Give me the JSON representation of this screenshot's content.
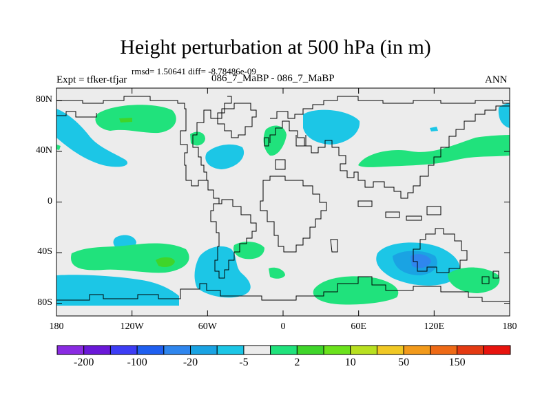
{
  "title": "Height perturbation at 500 hPa (in m)",
  "stats": "rmsd= 1.50641 diff= -8.78486e-09",
  "left_label": "Expt = tfker-tfjar",
  "center_label": "086_7_MaBP - 086_7_MaBP",
  "right_label": "ANN",
  "axes": {
    "y_ticks": [
      {
        "label": "80N",
        "lat": 80
      },
      {
        "label": "40N",
        "lat": 40
      },
      {
        "label": "0",
        "lat": 0
      },
      {
        "label": "40S",
        "lat": -40
      },
      {
        "label": "80S",
        "lat": -80
      }
    ],
    "x_ticks": [
      {
        "label": "180",
        "lon": -180
      },
      {
        "label": "120W",
        "lon": -120
      },
      {
        "label": "60W",
        "lon": -60
      },
      {
        "label": "0",
        "lon": 0
      },
      {
        "label": "60E",
        "lon": 60
      },
      {
        "label": "120E",
        "lon": 120
      },
      {
        "label": "180",
        "lon": 180
      }
    ],
    "lon_range": [
      -180,
      180
    ],
    "lat_range": [
      -90,
      90
    ]
  },
  "colorbar": {
    "colors": [
      "#8a2be2",
      "#6a18d8",
      "#3d3df5",
      "#1f5ff0",
      "#2f86ee",
      "#1aa3e3",
      "#1cc6e6",
      "#ececec",
      "#20e27c",
      "#3fd52a",
      "#6be21c",
      "#b8e020",
      "#f0c824",
      "#f29a1b",
      "#ee6a16",
      "#e43a12",
      "#e8140e"
    ],
    "labels": [
      {
        "text": "-200",
        "edge": 1
      },
      {
        "text": "-100",
        "edge": 3
      },
      {
        "text": "-20",
        "edge": 5
      },
      {
        "text": "-5",
        "edge": 7
      },
      {
        "text": "2",
        "edge": 9
      },
      {
        "text": "10",
        "edge": 11
      },
      {
        "text": "50",
        "edge": 13
      },
      {
        "text": "150",
        "edge": 15
      }
    ]
  },
  "colors": {
    "background": "#ececec",
    "positive": "#20e27c",
    "positive_strong": "#3fd52a",
    "negative": "#1cc6e6",
    "negative_strong": "#1aa3e3",
    "negative_stronger": "#2f86ee"
  }
}
